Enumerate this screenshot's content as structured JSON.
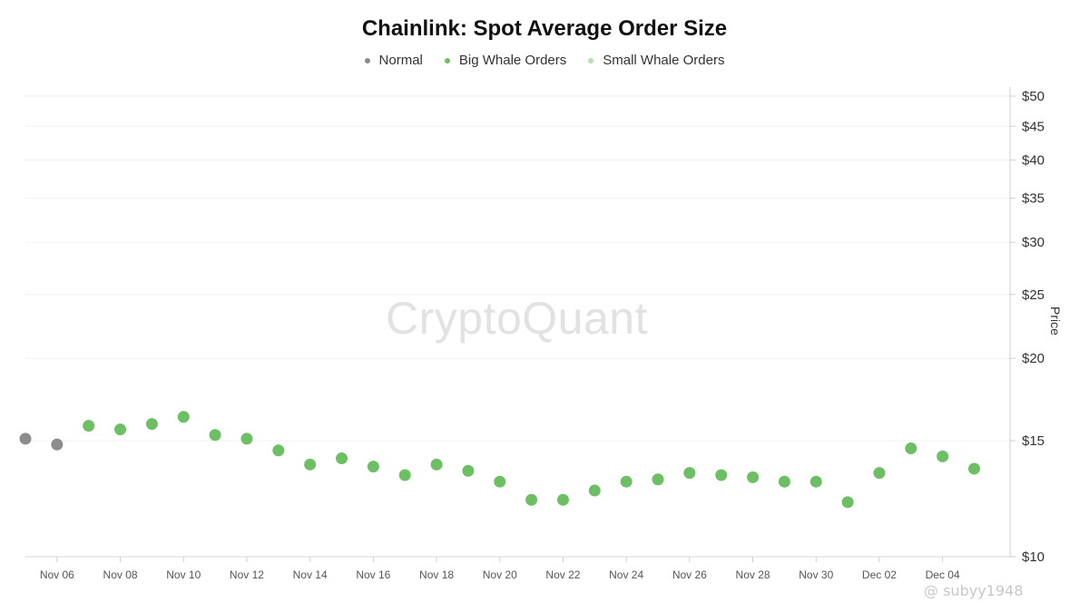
{
  "chart_data": {
    "type": "scatter",
    "title": "Chainlink: Spot Average Order Size",
    "ylabel": "Price",
    "y_scale": "log",
    "ylim": [
      10,
      50
    ],
    "y_ticks": [
      "$10",
      "$15",
      "$20",
      "$25",
      "$30",
      "$35",
      "$40",
      "$45",
      "$50"
    ],
    "x_ticks": [
      "Nov 06",
      "Nov 08",
      "Nov 10",
      "Nov 12",
      "Nov 14",
      "Nov 16",
      "Nov 18",
      "Nov 20",
      "Nov 22",
      "Nov 24",
      "Nov 26",
      "Nov 28",
      "Nov 30",
      "Dec 02",
      "Dec 04"
    ],
    "legend_placement": "top-center",
    "grid": true,
    "series": [
      {
        "name": "Normal",
        "color": "#8c8c8c"
      },
      {
        "name": "Big Whale Orders",
        "color": "#6cc063"
      },
      {
        "name": "Small Whale Orders",
        "color": "#b7e0b0"
      }
    ],
    "points": [
      {
        "date": "Nov 05",
        "price": 15.1,
        "series": "Normal"
      },
      {
        "date": "Nov 06",
        "price": 14.8,
        "series": "Normal"
      },
      {
        "date": "Nov 07",
        "price": 15.8,
        "series": "Big Whale Orders"
      },
      {
        "date": "Nov 08",
        "price": 15.6,
        "series": "Big Whale Orders"
      },
      {
        "date": "Nov 09",
        "price": 15.9,
        "series": "Big Whale Orders"
      },
      {
        "date": "Nov 10",
        "price": 16.3,
        "series": "Big Whale Orders"
      },
      {
        "date": "Nov 11",
        "price": 15.3,
        "series": "Big Whale Orders"
      },
      {
        "date": "Nov 12",
        "price": 15.1,
        "series": "Big Whale Orders"
      },
      {
        "date": "Nov 13",
        "price": 14.5,
        "series": "Big Whale Orders"
      },
      {
        "date": "Nov 14",
        "price": 13.8,
        "series": "Big Whale Orders"
      },
      {
        "date": "Nov 15",
        "price": 14.1,
        "series": "Big Whale Orders"
      },
      {
        "date": "Nov 16",
        "price": 13.7,
        "series": "Big Whale Orders"
      },
      {
        "date": "Nov 17",
        "price": 13.3,
        "series": "Big Whale Orders"
      },
      {
        "date": "Nov 18",
        "price": 13.8,
        "series": "Big Whale Orders"
      },
      {
        "date": "Nov 19",
        "price": 13.5,
        "series": "Big Whale Orders"
      },
      {
        "date": "Nov 20",
        "price": 13.0,
        "series": "Big Whale Orders"
      },
      {
        "date": "Nov 21",
        "price": 12.2,
        "series": "Big Whale Orders"
      },
      {
        "date": "Nov 22",
        "price": 12.2,
        "series": "Big Whale Orders"
      },
      {
        "date": "Nov 23",
        "price": 12.6,
        "series": "Big Whale Orders"
      },
      {
        "date": "Nov 24",
        "price": 13.0,
        "series": "Big Whale Orders"
      },
      {
        "date": "Nov 25",
        "price": 13.1,
        "series": "Big Whale Orders"
      },
      {
        "date": "Nov 26",
        "price": 13.4,
        "series": "Big Whale Orders"
      },
      {
        "date": "Nov 27",
        "price": 13.3,
        "series": "Big Whale Orders"
      },
      {
        "date": "Nov 28",
        "price": 13.2,
        "series": "Big Whale Orders"
      },
      {
        "date": "Nov 29",
        "price": 13.0,
        "series": "Big Whale Orders"
      },
      {
        "date": "Nov 30",
        "price": 13.0,
        "series": "Big Whale Orders"
      },
      {
        "date": "Dec 01",
        "price": 12.1,
        "series": "Big Whale Orders"
      },
      {
        "date": "Dec 02",
        "price": 13.4,
        "series": "Big Whale Orders"
      },
      {
        "date": "Dec 03",
        "price": 14.6,
        "series": "Big Whale Orders"
      },
      {
        "date": "Dec 04",
        "price": 14.2,
        "series": "Big Whale Orders"
      },
      {
        "date": "Dec 05",
        "price": 13.6,
        "series": "Big Whale Orders"
      }
    ]
  },
  "watermark": "CryptoQuant",
  "footer_note": "@ subyy1948"
}
